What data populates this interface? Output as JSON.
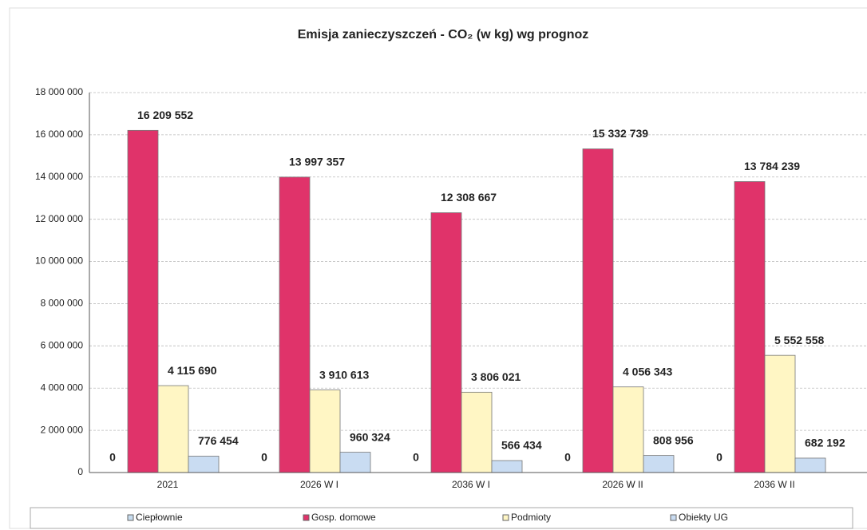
{
  "chart_data": {
    "type": "bar",
    "title": "Emisja zanieczyszczeń - CO₂ (w kg) wg prognoz",
    "categories": [
      "2021",
      "2026 W I",
      "2036 W I",
      "2026 W II",
      "2036 W II"
    ],
    "series": [
      {
        "name": "Ciepłownie",
        "color": "#c7dcef",
        "values": [
          0,
          0,
          0,
          0,
          0
        ]
      },
      {
        "name": "Gosp. domowe",
        "color": "#e0336a",
        "values": [
          16209552,
          13997357,
          12308667,
          15332739,
          13784239
        ],
        "value_labels": [
          "16 209 552",
          "13 997 357",
          "12 308 667",
          "15 332 739",
          "13 784 239"
        ]
      },
      {
        "name": "Podmioty",
        "color": "#fff6c4",
        "values": [
          4115690,
          3910613,
          3806021,
          4056343,
          5552558
        ],
        "value_labels": [
          "4 115 690",
          "3 910 613",
          "3 806 021",
          "4 056 343",
          "5 552 558"
        ]
      },
      {
        "name": "Obiekty UG",
        "color": "#c9dcf2",
        "values": [
          776454,
          960324,
          566434,
          808956,
          682192
        ],
        "value_labels": [
          "776 454",
          "960 324",
          "566 434",
          "808 956",
          "682 192"
        ]
      }
    ],
    "ylim": [
      0,
      18000000
    ],
    "yticks": [
      0,
      {
        "value": 2000000,
        "label": "2 000 000"
      },
      {
        "value": 4000000,
        "label": "4 000 000"
      },
      {
        "value": 6000000,
        "label": "6 000 000"
      },
      {
        "value": 8000000,
        "label": "8 000 000"
      },
      {
        "value": 10000000,
        "label": "10 000 000"
      },
      {
        "value": 12000000,
        "label": "12 000 000"
      },
      {
        "value": 14000000,
        "label": "14 000 000"
      },
      {
        "value": 16000000,
        "label": "16 000 000"
      },
      {
        "value": 18000000,
        "label": "18 000 000"
      }
    ],
    "grid": true
  }
}
